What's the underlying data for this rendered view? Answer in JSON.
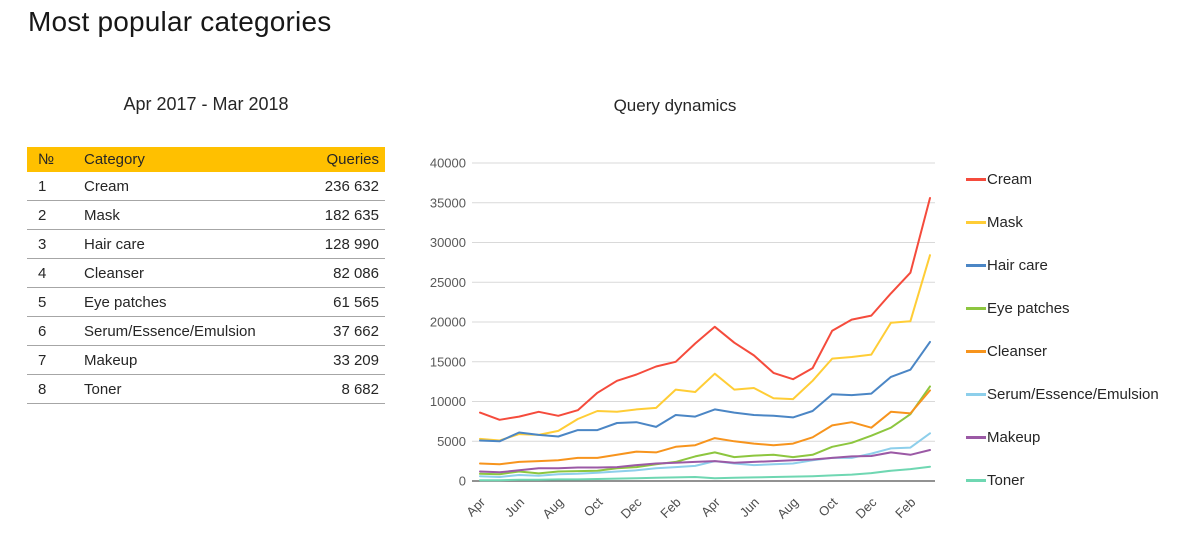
{
  "page_title": "Most popular categories",
  "table": {
    "subtitle": "Apr 2017 - Mar 2018",
    "header_bg": "#FFC000",
    "headers": {
      "num": "№",
      "category": "Category",
      "queries": "Queries"
    },
    "rows": [
      {
        "num": "1",
        "category": "Cream",
        "queries": "236 632"
      },
      {
        "num": "2",
        "category": "Mask",
        "queries": "182 635"
      },
      {
        "num": "3",
        "category": "Hair care",
        "queries": "128 990"
      },
      {
        "num": "4",
        "category": "Cleanser",
        "queries": "82 086"
      },
      {
        "num": "5",
        "category": "Eye patches",
        "queries": "61 565"
      },
      {
        "num": "6",
        "category": "Serum/Essence/Emulsion",
        "queries": "37 662"
      },
      {
        "num": "7",
        "category": "Makeup",
        "queries": "33 209"
      },
      {
        "num": "8",
        "category": "Toner",
        "queries": "8 682"
      }
    ]
  },
  "chart_data": {
    "type": "line",
    "title": "Query dynamics",
    "xlabel": "",
    "ylabel": "",
    "ylim": [
      0,
      40000
    ],
    "y_ticks": [
      0,
      5000,
      10000,
      15000,
      20000,
      25000,
      30000,
      35000,
      40000
    ],
    "grid": "horizontal",
    "legend_position": "right",
    "x": [
      "Apr",
      "May",
      "Jun",
      "Jul",
      "Aug",
      "Sep",
      "Oct",
      "Nov",
      "Dec",
      "Jan",
      "Feb",
      "Mar",
      "Apr",
      "May",
      "Jun",
      "Jul",
      "Aug",
      "Sep",
      "Oct",
      "Nov",
      "Dec",
      "Jan",
      "Feb",
      "Mar"
    ],
    "x_tick_every": 2,
    "x_tick_labels": [
      "Apr",
      "Jun",
      "Aug",
      "Oct",
      "Dec",
      "Feb",
      "Apr",
      "Jun",
      "Aug",
      "Oct",
      "Dec",
      "Feb"
    ],
    "axis_color": "#6e6e6e",
    "gridline_color": "#d9d9d9",
    "tick_label_color": "#595959",
    "series": [
      {
        "name": "Cream",
        "color": "#F54B3C",
        "values": [
          8600,
          7700,
          8100,
          8700,
          8200,
          8900,
          11100,
          12600,
          13400,
          14400,
          15000,
          17300,
          19400,
          17400,
          15800,
          13600,
          12800,
          14200,
          18900,
          20300,
          20800,
          23600,
          26200,
          35600
        ]
      },
      {
        "name": "Mask",
        "color": "#FFCD36",
        "values": [
          5300,
          5100,
          5900,
          5800,
          6300,
          7800,
          8800,
          8700,
          9000,
          9200,
          11500,
          11200,
          13500,
          11500,
          11700,
          10400,
          10300,
          12600,
          15400,
          15600,
          15900,
          19900,
          20100,
          28400
        ]
      },
      {
        "name": "Hair care",
        "color": "#4B86C5",
        "values": [
          5100,
          5000,
          6100,
          5800,
          5600,
          6400,
          6400,
          7300,
          7400,
          6800,
          8300,
          8100,
          9000,
          8600,
          8300,
          8200,
          8000,
          8800,
          10900,
          10800,
          11000,
          13100,
          14000,
          17500
        ]
      },
      {
        "name": "Eye patches",
        "color": "#8DC63F",
        "values": [
          900,
          850,
          1200,
          950,
          1200,
          1250,
          1300,
          1600,
          1750,
          2100,
          2400,
          3100,
          3600,
          3000,
          3200,
          3300,
          3000,
          3300,
          4300,
          4800,
          5700,
          6700,
          8400,
          11900
        ]
      },
      {
        "name": "Cleanser",
        "color": "#F7941D",
        "values": [
          2200,
          2100,
          2400,
          2500,
          2600,
          2900,
          2900,
          3300,
          3700,
          3600,
          4300,
          4500,
          5400,
          5000,
          4700,
          4500,
          4700,
          5500,
          7000,
          7400,
          6700,
          8700,
          8500,
          11400
        ]
      },
      {
        "name": "Serum/Essence/Emulsion",
        "color": "#8DCFEB",
        "values": [
          600,
          500,
          750,
          650,
          850,
          900,
          1050,
          1200,
          1350,
          1600,
          1750,
          1900,
          2500,
          2200,
          2000,
          2100,
          2200,
          2600,
          2900,
          2900,
          3450,
          4100,
          4200,
          6000
        ]
      },
      {
        "name": "Makeup",
        "color": "#9B59A5",
        "values": [
          1200,
          1100,
          1350,
          1600,
          1600,
          1700,
          1700,
          1750,
          2000,
          2200,
          2300,
          2400,
          2500,
          2300,
          2400,
          2500,
          2600,
          2700,
          2900,
          3100,
          3150,
          3600,
          3300,
          3900
        ]
      },
      {
        "name": "Toner",
        "color": "#6FD7B2",
        "values": [
          100,
          100,
          150,
          150,
          200,
          200,
          250,
          300,
          350,
          400,
          450,
          500,
          350,
          400,
          450,
          500,
          550,
          600,
          700,
          800,
          1000,
          1300,
          1500,
          1800
        ]
      }
    ]
  }
}
